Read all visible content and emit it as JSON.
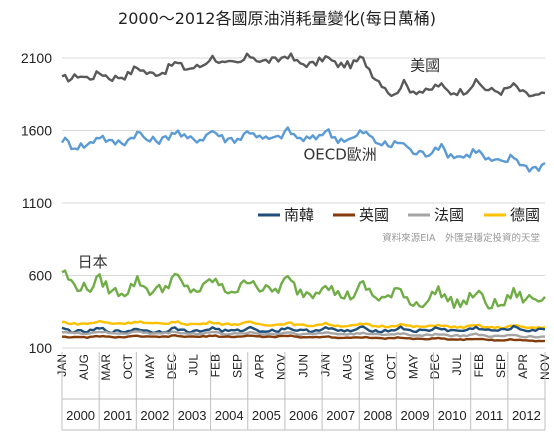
{
  "chart_data": {
    "type": "line",
    "title": "2000～2012各國原油消耗量變化(每日萬桶)",
    "source_note": "資料來源EIA　外匯是穩定投資的天堂",
    "ylim": [
      100,
      2200
    ],
    "yticks": [
      100,
      600,
      1100,
      1600,
      2100
    ],
    "grid": true,
    "legend_position": "right",
    "colors": {
      "us": "#595959",
      "oecd": "#5b9bd5",
      "japan": "#70ad47",
      "korea": "#1f4e79",
      "uk": "#843c0c",
      "france": "#a5a5a5",
      "germany": "#ffc000"
    },
    "x_tick_labels": [
      "JAN",
      "AUG",
      "MAR",
      "OCT",
      "MAY",
      "DEC",
      "JUL",
      "FEB",
      "SEP",
      "APR",
      "NOV",
      "JUN",
      "JAN",
      "AUG",
      "MAR",
      "OCT",
      "MAY",
      "DEC",
      "JUL",
      "FEB",
      "SEP",
      "APR",
      "NOV"
    ],
    "x_tick_months": [
      1,
      8,
      15,
      22,
      29,
      36,
      43,
      50,
      57,
      64,
      71,
      78,
      85,
      92,
      99,
      106,
      113,
      120,
      127,
      134,
      141,
      148,
      155
    ],
    "years": [
      "2000",
      "2001",
      "2002",
      "2003",
      "2004",
      "2005",
      "2006",
      "2007",
      "2008",
      "2009",
      "2010",
      "2011",
      "2012"
    ],
    "months_total": 155,
    "series": [
      {
        "key": "us",
        "name": "美國",
        "anchors": [
          [
            1,
            1920
          ],
          [
            6,
            2000
          ],
          [
            12,
            1960
          ],
          [
            20,
            1990
          ],
          [
            30,
            2010
          ],
          [
            40,
            2040
          ],
          [
            48,
            2070
          ],
          [
            60,
            2080
          ],
          [
            68,
            2100
          ],
          [
            75,
            2080
          ],
          [
            84,
            2070
          ],
          [
            96,
            2070
          ],
          [
            100,
            2000
          ],
          [
            104,
            1920
          ],
          [
            107,
            1830
          ],
          [
            110,
            1900
          ],
          [
            118,
            1880
          ],
          [
            125,
            1880
          ],
          [
            135,
            1900
          ],
          [
            143,
            1880
          ],
          [
            150,
            1860
          ],
          [
            155,
            1850
          ]
        ],
        "amp": 45
      },
      {
        "key": "oecd",
        "name": "OECD歐洲",
        "anchors": [
          [
            1,
            1500
          ],
          [
            10,
            1520
          ],
          [
            20,
            1540
          ],
          [
            30,
            1550
          ],
          [
            40,
            1560
          ],
          [
            50,
            1560
          ],
          [
            60,
            1560
          ],
          [
            70,
            1560
          ],
          [
            80,
            1560
          ],
          [
            90,
            1560
          ],
          [
            100,
            1550
          ],
          [
            108,
            1490
          ],
          [
            115,
            1460
          ],
          [
            125,
            1450
          ],
          [
            135,
            1420
          ],
          [
            145,
            1380
          ],
          [
            150,
            1360
          ],
          [
            155,
            1370
          ]
        ],
        "amp": 50
      },
      {
        "key": "japan",
        "name": "日本",
        "anchors": [
          [
            1,
            580
          ],
          [
            12,
            520
          ],
          [
            24,
            510
          ],
          [
            36,
            540
          ],
          [
            48,
            520
          ],
          [
            60,
            530
          ],
          [
            72,
            520
          ],
          [
            84,
            500
          ],
          [
            96,
            480
          ],
          [
            106,
            470
          ],
          [
            112,
            430
          ],
          [
            120,
            450
          ],
          [
            132,
            430
          ],
          [
            144,
            420
          ],
          [
            150,
            470
          ],
          [
            155,
            450
          ]
        ],
        "amp": 70
      },
      {
        "key": "germany",
        "name": "德國",
        "anchors": [
          [
            1,
            270
          ],
          [
            20,
            275
          ],
          [
            40,
            270
          ],
          [
            60,
            268
          ],
          [
            80,
            260
          ],
          [
            100,
            255
          ],
          [
            120,
            250
          ],
          [
            140,
            245
          ],
          [
            155,
            245
          ]
        ],
        "amp": 12
      },
      {
        "key": "korea",
        "name": "南韓",
        "anchors": [
          [
            1,
            220
          ],
          [
            30,
            220
          ],
          [
            60,
            225
          ],
          [
            90,
            225
          ],
          [
            120,
            225
          ],
          [
            155,
            230
          ]
        ],
        "amp": 18
      },
      {
        "key": "france",
        "name": "法國",
        "anchors": [
          [
            1,
            205
          ],
          [
            30,
            205
          ],
          [
            60,
            200
          ],
          [
            90,
            200
          ],
          [
            120,
            190
          ],
          [
            155,
            180
          ]
        ],
        "amp": 10
      },
      {
        "key": "uk",
        "name": "英國",
        "anchors": [
          [
            1,
            175
          ],
          [
            40,
            180
          ],
          [
            70,
            180
          ],
          [
            100,
            170
          ],
          [
            130,
            160
          ],
          [
            155,
            150
          ]
        ],
        "amp": 6
      }
    ],
    "annotations": [
      {
        "text": "美國",
        "x_month": 112,
        "y_value": 2015
      },
      {
        "text": "OECD歐洲",
        "x_month": 78,
        "y_value": 1400
      },
      {
        "text": "日本",
        "x_month": 6,
        "y_value": 660
      }
    ],
    "legend_order": [
      "korea",
      "uk",
      "france",
      "germany"
    ]
  }
}
